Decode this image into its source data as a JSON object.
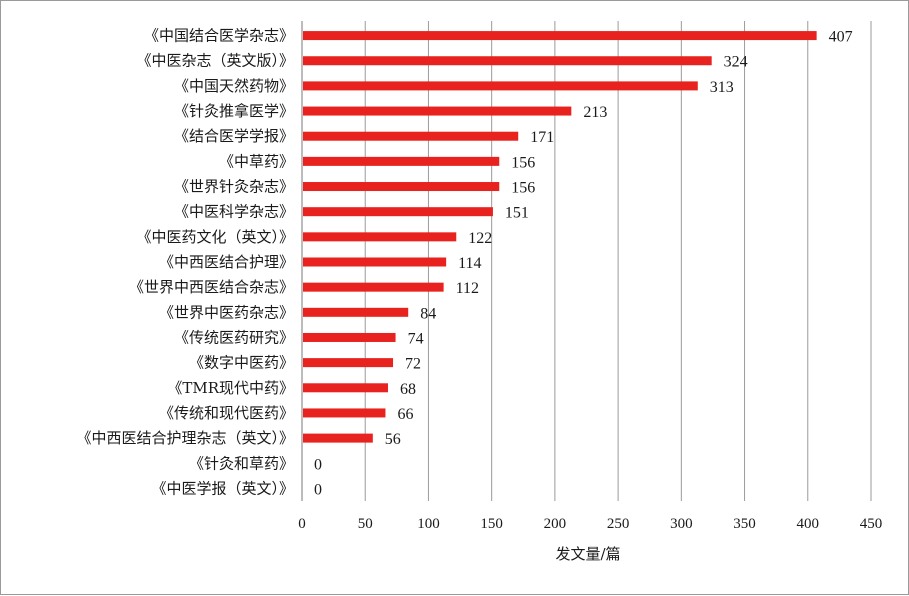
{
  "chart_data": {
    "type": "bar",
    "orientation": "horizontal",
    "categories": [
      "《中国结合医学杂志》",
      "《中医杂志（英文版）》",
      "《中国天然药物》",
      "《针灸推拿医学》",
      "《结合医学学报》",
      "《中草药》",
      "《世界针灸杂志》",
      "《中医科学杂志》",
      "《中医药文化（英文）》",
      "《中西医结合护理》",
      "《世界中西医结合杂志》",
      "《世界中医药杂志》",
      "《传统医药研究》",
      "《数字中医药》",
      "《TMR现代中药》",
      "《传统和现代医药》",
      "《中西医结合护理杂志（英文）》",
      "《针灸和草药》",
      "《中医学报（英文）》"
    ],
    "values": [
      407,
      324,
      313,
      213,
      171,
      156,
      156,
      151,
      122,
      114,
      112,
      84,
      74,
      72,
      68,
      66,
      56,
      0,
      0
    ],
    "value_labels": [
      "407",
      "324",
      "313",
      "213",
      "171",
      "156",
      "156",
      "151",
      "122",
      "114",
      "112",
      "84",
      "74",
      "72",
      "68",
      "66",
      "56",
      "0",
      "0"
    ],
    "xlabel": "发文量/篇",
    "ylabel": "",
    "xlim": [
      0,
      450
    ],
    "xticks": [
      "0",
      "50",
      "100",
      "150",
      "200",
      "250",
      "300",
      "350",
      "400",
      "450"
    ],
    "grid": "vertical",
    "legend": "none",
    "bar_color": "#e8221e",
    "grid_color": "#9a9a9a"
  }
}
